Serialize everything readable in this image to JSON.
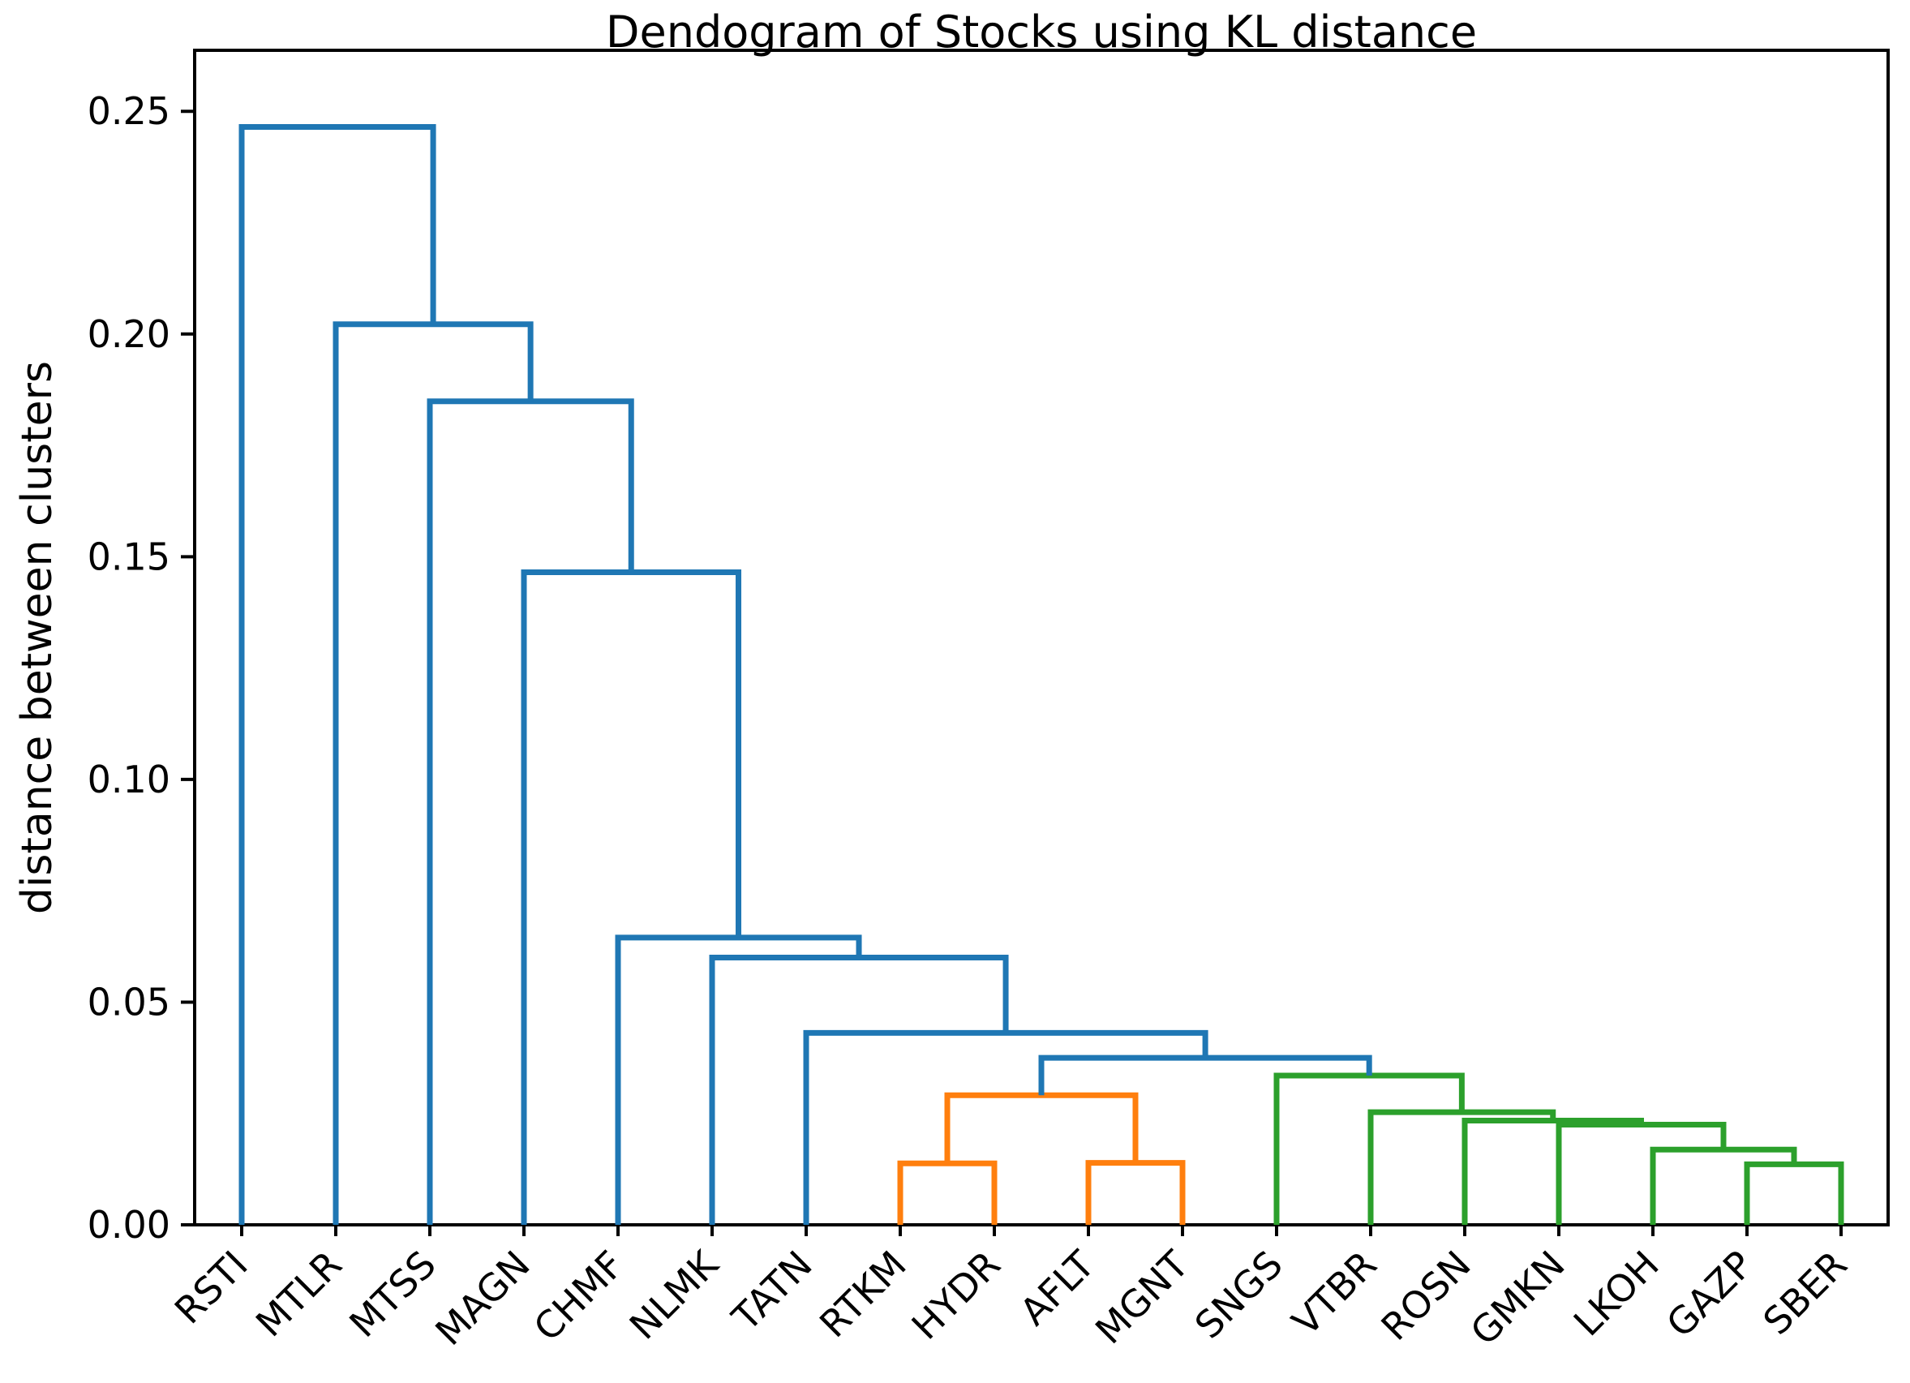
{
  "chart_data": {
    "type": "dendrogram",
    "title": "Dendogram of Stocks using KL distance",
    "ylabel": "distance between clusters",
    "xlabel": "",
    "leaves": [
      "RSTI",
      "MTLR",
      "MTSS",
      "MAGN",
      "CHMF",
      "NLMK",
      "TATN",
      "RTKM",
      "HYDR",
      "AFLT",
      "MGNT",
      "SNGS",
      "VTBR",
      "ROSN",
      "GMKN",
      "LKOH",
      "GAZP",
      "SBER"
    ],
    "merges": [
      {
        "id": "RTKM+HYDR",
        "children": [
          "RTKM",
          "HYDR"
        ],
        "height": 0.0138,
        "color": "orange"
      },
      {
        "id": "AFLT+MGNT",
        "children": [
          "AFLT",
          "MGNT"
        ],
        "height": 0.0139,
        "color": "orange"
      },
      {
        "id": "orange-root",
        "children": [
          "RTKM+HYDR",
          "AFLT+MGNT"
        ],
        "height": 0.0291,
        "color": "orange"
      },
      {
        "id": "GAZP+SBER",
        "children": [
          "GAZP",
          "SBER"
        ],
        "height": 0.0136,
        "color": "green"
      },
      {
        "id": "LKOH-join",
        "children": [
          "LKOH",
          "GAZP+SBER"
        ],
        "height": 0.0169,
        "color": "green"
      },
      {
        "id": "GMKN-join",
        "children": [
          "GMKN",
          "LKOH-join"
        ],
        "height": 0.0225,
        "color": "green"
      },
      {
        "id": "ROSN-join",
        "children": [
          "ROSN",
          "GMKN-join"
        ],
        "height": 0.0234,
        "color": "green"
      },
      {
        "id": "VTBR-join",
        "children": [
          "VTBR",
          "ROSN-join"
        ],
        "height": 0.0253,
        "color": "green"
      },
      {
        "id": "green-root",
        "children": [
          "SNGS",
          "VTBR-join"
        ],
        "height": 0.0335,
        "color": "green"
      },
      {
        "id": "orange-green",
        "children": [
          "orange-root",
          "green-root"
        ],
        "height": 0.0375,
        "color": "blue"
      },
      {
        "id": "TATN-join",
        "children": [
          "TATN",
          "orange-green"
        ],
        "height": 0.0431,
        "color": "blue"
      },
      {
        "id": "NLMK-join",
        "children": [
          "NLMK",
          "TATN-join"
        ],
        "height": 0.06,
        "color": "blue"
      },
      {
        "id": "CHMF-join",
        "children": [
          "CHMF",
          "NLMK-join"
        ],
        "height": 0.0645,
        "color": "blue"
      },
      {
        "id": "MAGN-join",
        "children": [
          "MAGN",
          "CHMF-join"
        ],
        "height": 0.1465,
        "color": "blue"
      },
      {
        "id": "MTSS-join",
        "children": [
          "MTSS",
          "MAGN-join"
        ],
        "height": 0.1849,
        "color": "blue"
      },
      {
        "id": "MTLR-join",
        "children": [
          "MTLR",
          "MTSS-join"
        ],
        "height": 0.2022,
        "color": "blue"
      },
      {
        "id": "RSTI-join",
        "children": [
          "RSTI",
          "MTLR-join"
        ],
        "height": 0.2465,
        "color": "blue"
      }
    ],
    "colors": {
      "blue": "#1f77b4",
      "orange": "#ff7f0e",
      "green": "#2ca02c",
      "axis": "#000000"
    },
    "y_axis": {
      "tick_values": [
        0.0,
        0.05,
        0.1,
        0.15,
        0.2,
        0.25
      ],
      "tick_labels": [
        "0.00",
        "0.05",
        "0.10",
        "0.15",
        "0.20",
        "0.25"
      ],
      "ylim": [
        0,
        0.2637
      ],
      "grid": false
    },
    "legend": null
  }
}
